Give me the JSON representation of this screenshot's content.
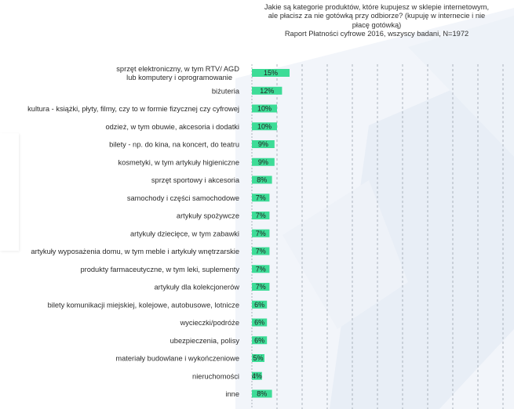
{
  "chart_data": {
    "type": "bar",
    "orientation": "horizontal",
    "title_lines": [
      "Jakie są kategorie produktów, które kupujesz w sklepie internetowym,",
      "ale płacisz za nie gotówką przy odbiorze? (kupuję w internecie i nie",
      "płacę gotówką)"
    ],
    "subtitle": "Raport Płatności cyfrowe 2016, wszyscy badani, N=1972",
    "xlim": [
      0,
      100
    ],
    "grid": true,
    "categories": [
      [
        "sprzęt elektroniczny, w tym RTV/ AGD",
        "lub komputery i oprogramowanie"
      ],
      [
        "biżuteria"
      ],
      [
        "kultura - książki, płyty, filmy, czy to w formie fizycznej czy cyfrowej"
      ],
      [
        "odzież, w tym obuwie, akcesoria i dodatki"
      ],
      [
        "bilety - np. do kina, na koncert, do teatru"
      ],
      [
        "kosmetyki, w tym artykuły higieniczne"
      ],
      [
        "sprzęt sportowy i akcesoria"
      ],
      [
        "samochody i części samochodowe"
      ],
      [
        "artykuły spożywcze"
      ],
      [
        "artykuły dziecięce, w tym zabawki"
      ],
      [
        "artykuły wyposażenia domu, w tym meble i artykuły wnętrzarskie"
      ],
      [
        "produkty farmaceutyczne, w tym leki, suplementy"
      ],
      [
        "artykuły dla kolekcjonerów"
      ],
      [
        "bilety komunikacji miejskiej, kolejowe, autobusowe, lotnicze"
      ],
      [
        "wycieczki/podróże"
      ],
      [
        "ubezpieczenia, polisy"
      ],
      [
        "materiały budowlane i wykończeniowe"
      ],
      [
        "nieruchomości"
      ],
      [
        "inne"
      ]
    ],
    "values": [
      15,
      12,
      10,
      10,
      9,
      9,
      8,
      7,
      7,
      7,
      7,
      7,
      7,
      6,
      6,
      6,
      5,
      4,
      8
    ],
    "data_labels": [
      "15%",
      "12%",
      "10%",
      "10%",
      "9%",
      "9%",
      "8%",
      "7%",
      "7%",
      "7%",
      "7%",
      "7%",
      "7%",
      "6%",
      "6%",
      "6%",
      "5%",
      "4%",
      "8%"
    ],
    "bar_color": "#3ddc97"
  }
}
